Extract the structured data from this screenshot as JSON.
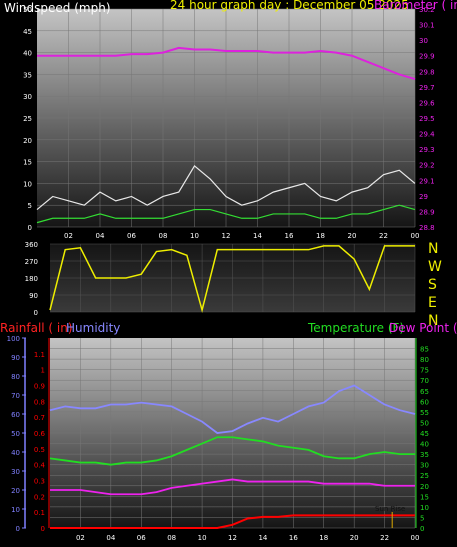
{
  "chart_data": [
    {
      "type": "line",
      "title": "24 hour graph day : December 05 2025",
      "xlabel": "",
      "x_tick_labels": [
        "02",
        "04",
        "06",
        "08",
        "10",
        "12",
        "14",
        "16",
        "18",
        "20",
        "22",
        "00"
      ],
      "x": [
        0,
        1,
        2,
        3,
        4,
        5,
        6,
        7,
        8,
        9,
        10,
        11,
        12,
        13,
        14,
        15,
        16,
        17,
        18,
        19,
        20,
        21,
        22,
        23,
        24
      ],
      "left_axis": {
        "label": "Windspeed (mph)",
        "ylim": [
          0,
          50
        ],
        "ticks": [
          0,
          5,
          10,
          15,
          20,
          25,
          30,
          35,
          40,
          45,
          50
        ]
      },
      "right_axis": {
        "label": "Barometer ( in)",
        "ylim": [
          28.8,
          30.2
        ],
        "ticks": [
          "28.8",
          "28.9",
          "29",
          "29.1",
          "29.2",
          "29.3",
          "29.4",
          "29.5",
          "29.6",
          "29.7",
          "29.8",
          "29.9",
          "30",
          "30.1",
          "30.2"
        ]
      },
      "colors": {
        "gust": "#e8e8e8",
        "wind": "#33dd33",
        "barometer": "#dd22dd"
      },
      "series": [
        {
          "name": "Barometer",
          "axis": "right",
          "values": [
            29.9,
            29.9,
            29.9,
            29.9,
            29.9,
            29.9,
            29.91,
            29.91,
            29.92,
            29.95,
            29.94,
            29.94,
            29.93,
            29.93,
            29.93,
            29.92,
            29.92,
            29.92,
            29.93,
            29.92,
            29.9,
            29.86,
            29.82,
            29.78,
            29.75
          ]
        },
        {
          "name": "Wind gust",
          "axis": "left",
          "values": [
            4,
            7,
            6,
            5,
            8,
            6,
            7,
            5,
            7,
            8,
            14,
            11,
            7,
            5,
            6,
            8,
            9,
            10,
            7,
            6,
            8,
            9,
            12,
            13,
            10
          ]
        },
        {
          "name": "Wind speed",
          "axis": "left",
          "values": [
            1,
            2,
            2,
            2,
            3,
            2,
            2,
            2,
            2,
            3,
            4,
            4,
            3,
            2,
            2,
            3,
            3,
            3,
            2,
            2,
            3,
            3,
            4,
            5,
            4
          ]
        }
      ]
    },
    {
      "type": "line",
      "x_tick_labels": [
        "02",
        "04",
        "06",
        "08",
        "10",
        "12",
        "14",
        "16",
        "18",
        "20",
        "22",
        "00"
      ],
      "x": [
        0,
        1,
        2,
        3,
        4,
        5,
        6,
        7,
        8,
        9,
        10,
        11,
        12,
        13,
        14,
        15,
        16,
        17,
        18,
        19,
        20,
        21,
        22,
        23,
        24
      ],
      "ylim": [
        0,
        360
      ],
      "ticks": [
        0,
        90,
        180,
        270,
        360
      ],
      "compass": [
        "N",
        "W",
        "S",
        "E",
        "N"
      ],
      "colors": {
        "direction": "#eeee00"
      },
      "series": [
        {
          "name": "Wind direction",
          "values": [
            10,
            330,
            340,
            180,
            180,
            180,
            200,
            320,
            330,
            300,
            10,
            330,
            330,
            330,
            330,
            330,
            330,
            330,
            350,
            350,
            280,
            120,
            350,
            350,
            350
          ]
        }
      ]
    },
    {
      "type": "line",
      "x_tick_labels": [
        "02",
        "04",
        "06",
        "08",
        "10",
        "12",
        "14",
        "16",
        "18",
        "20",
        "22",
        "00"
      ],
      "x": [
        0,
        1,
        2,
        3,
        4,
        5,
        6,
        7,
        8,
        9,
        10,
        11,
        12,
        13,
        14,
        15,
        16,
        17,
        18,
        19,
        20,
        21,
        22,
        23,
        24
      ],
      "humidity_axis": {
        "label": "Humidity",
        "ylim": [
          0,
          100
        ],
        "ticks": [
          0,
          10,
          20,
          30,
          40,
          50,
          60,
          70,
          80,
          90,
          100
        ]
      },
      "rainfall_axis": {
        "label": "Rainfall ( in)",
        "ylim": [
          0,
          1.2
        ],
        "ticks": [
          "0",
          "0.1",
          "0.2",
          "0.3",
          "0.4",
          "0.5",
          "0.6",
          "0.7",
          "0.8",
          "0.9",
          "1",
          "1.1"
        ]
      },
      "temperature_axis": {
        "label": "Temperature (F)",
        "label2": "Dew Point (F)",
        "ylim": [
          0,
          90
        ],
        "ticks": [
          0,
          5,
          10,
          15,
          20,
          25,
          30,
          35,
          40,
          45,
          50,
          55,
          60,
          65,
          70,
          75,
          80,
          85
        ]
      },
      "annotations": [
        {
          "text": "Sun Rise",
          "x": 22.5
        }
      ],
      "colors": {
        "rainfall": "#ff0000",
        "humidity": "#8888ff",
        "temperature": "#22dd22",
        "dewpoint": "#ee22ee",
        "axis_left": "#8080ff",
        "axis_temp": "#22dd22"
      },
      "series": [
        {
          "name": "Humidity",
          "axis": "humidity",
          "values": [
            62,
            64,
            63,
            63,
            65,
            65,
            66,
            65,
            64,
            60,
            56,
            50,
            51,
            55,
            58,
            56,
            60,
            64,
            66,
            72,
            75,
            70,
            65,
            62,
            60
          ]
        },
        {
          "name": "Temperature",
          "axis": "temperature",
          "values": [
            33,
            32,
            31,
            31,
            30,
            31,
            31,
            32,
            34,
            37,
            40,
            43,
            43,
            42,
            41,
            39,
            38,
            37,
            34,
            33,
            33,
            35,
            36,
            35,
            35
          ]
        },
        {
          "name": "Dew Point",
          "axis": "temperature",
          "values": [
            18,
            18,
            18,
            17,
            16,
            16,
            16,
            17,
            19,
            20,
            21,
            22,
            23,
            22,
            22,
            22,
            22,
            22,
            21,
            21,
            21,
            21,
            20,
            20,
            20
          ]
        },
        {
          "name": "Rainfall",
          "axis": "rainfall",
          "values": [
            0,
            0,
            0,
            0,
            0,
            0,
            0,
            0,
            0,
            0,
            0,
            0,
            0.02,
            0.06,
            0.07,
            0.07,
            0.08,
            0.08,
            0.08,
            0.08,
            0.08,
            0.08,
            0.08,
            0.08,
            0.08
          ]
        }
      ]
    }
  ]
}
